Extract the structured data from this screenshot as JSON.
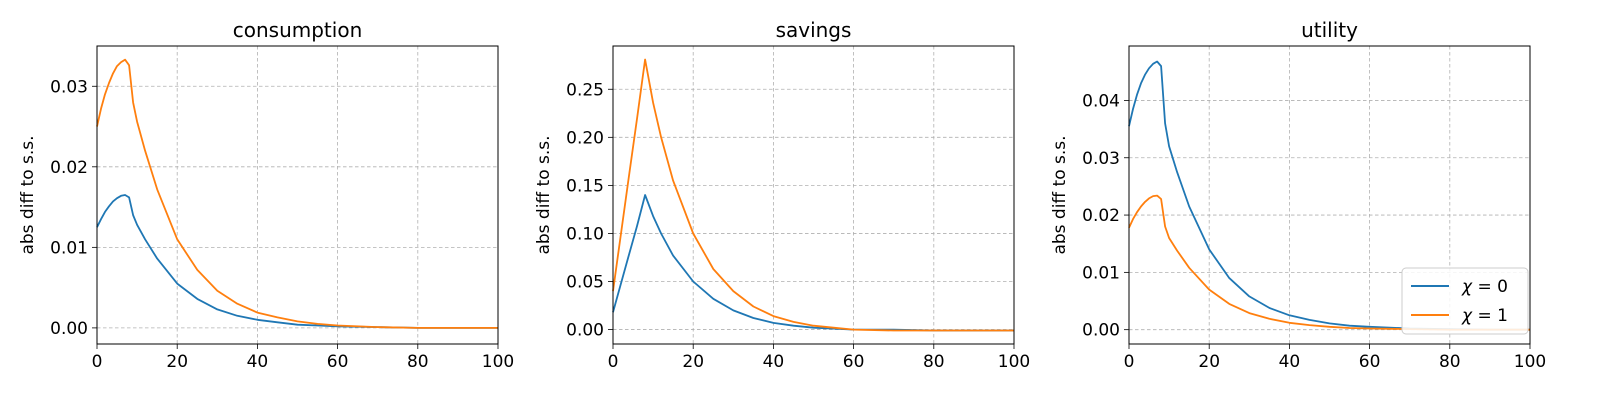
{
  "chart_data": [
    {
      "type": "line",
      "title": "consumption",
      "xlabel": "",
      "ylabel": "abs diff to s.s.",
      "xlim": [
        0,
        100
      ],
      "ylim": [
        -0.002,
        0.035
      ],
      "xticks": [
        0,
        20,
        40,
        60,
        80,
        100
      ],
      "xtick_labels": [
        "0",
        "20",
        "40",
        "60",
        "80",
        "100"
      ],
      "yticks": [
        0,
        0.01,
        0.02,
        0.03
      ],
      "ytick_labels": [
        "0.00",
        "0.01",
        "0.02",
        "0.03"
      ],
      "grid": true,
      "series": [
        {
          "name": "χ = 0",
          "color": "#1f77b4",
          "x": [
            0,
            1,
            2,
            3,
            4,
            5,
            6,
            7,
            8,
            9,
            10,
            12,
            15,
            20,
            25,
            30,
            35,
            40,
            45,
            50,
            55,
            60,
            70,
            80,
            90,
            100
          ],
          "y": [
            0.0125,
            0.0135,
            0.0144,
            0.0151,
            0.0157,
            0.0161,
            0.0164,
            0.0165,
            0.0162,
            0.014,
            0.0128,
            0.011,
            0.0086,
            0.0055,
            0.0036,
            0.0023,
            0.0015,
            0.001,
            0.0007,
            0.0004,
            0.0003,
            0.0002,
            0.0001,
            0.0,
            0.0,
            0.0
          ]
        },
        {
          "name": "χ = 1",
          "color": "#ff7f0e",
          "x": [
            0,
            1,
            2,
            3,
            4,
            5,
            6,
            7,
            8,
            9,
            10,
            12,
            15,
            20,
            25,
            30,
            35,
            40,
            45,
            50,
            55,
            60,
            70,
            80,
            90,
            100
          ],
          "y": [
            0.025,
            0.0272,
            0.029,
            0.0304,
            0.0316,
            0.0325,
            0.033,
            0.0333,
            0.0326,
            0.028,
            0.0256,
            0.022,
            0.0172,
            0.011,
            0.0072,
            0.0046,
            0.003,
            0.0019,
            0.0013,
            0.0008,
            0.0005,
            0.0003,
            0.0001,
            0.0,
            0.0,
            0.0
          ]
        }
      ]
    },
    {
      "type": "line",
      "title": "savings",
      "xlabel": "",
      "ylabel": "abs diff to s.s.",
      "xlim": [
        0,
        100
      ],
      "ylim": [
        -0.015,
        0.295
      ],
      "xticks": [
        0,
        20,
        40,
        60,
        80,
        100
      ],
      "xtick_labels": [
        "0",
        "20",
        "40",
        "60",
        "80",
        "100"
      ],
      "yticks": [
        0,
        0.05,
        0.1,
        0.15,
        0.2,
        0.25
      ],
      "ytick_labels": [
        "0.00",
        "0.05",
        "0.10",
        "0.15",
        "0.20",
        "0.25"
      ],
      "grid": true,
      "series": [
        {
          "name": "χ = 0",
          "color": "#1f77b4",
          "x": [
            0,
            2,
            4,
            6,
            8,
            10,
            12,
            15,
            20,
            25,
            30,
            35,
            40,
            45,
            50,
            55,
            60,
            70,
            80,
            90,
            100
          ],
          "y": [
            0.018,
            0.048,
            0.078,
            0.108,
            0.14,
            0.118,
            0.1,
            0.077,
            0.05,
            0.032,
            0.02,
            0.012,
            0.007,
            0.004,
            0.002,
            0.001,
            0.0,
            0.0,
            -0.001,
            -0.001,
            -0.001
          ]
        },
        {
          "name": "χ = 1",
          "color": "#ff7f0e",
          "x": [
            0,
            2,
            4,
            6,
            8,
            10,
            12,
            15,
            20,
            25,
            30,
            35,
            40,
            45,
            50,
            55,
            60,
            70,
            80,
            90,
            100
          ],
          "y": [
            0.04,
            0.1,
            0.16,
            0.22,
            0.281,
            0.236,
            0.2,
            0.155,
            0.1,
            0.063,
            0.04,
            0.024,
            0.014,
            0.008,
            0.004,
            0.002,
            0.0,
            -0.001,
            -0.001,
            -0.001,
            -0.001
          ]
        }
      ]
    },
    {
      "type": "line",
      "title": "utility",
      "xlabel": "",
      "ylabel": "abs diff to s.s.",
      "xlim": [
        0,
        100
      ],
      "ylim": [
        -0.0025,
        0.0495
      ],
      "xticks": [
        0,
        20,
        40,
        60,
        80,
        100
      ],
      "xtick_labels": [
        "0",
        "20",
        "40",
        "60",
        "80",
        "100"
      ],
      "yticks": [
        0,
        0.01,
        0.02,
        0.03,
        0.04
      ],
      "ytick_labels": [
        "0.00",
        "0.01",
        "0.02",
        "0.03",
        "0.04"
      ],
      "grid": true,
      "legend": {
        "placement": "lower-right",
        "entries": [
          {
            "sym": "χ",
            "rest": " = 0"
          },
          {
            "sym": "χ",
            "rest": " = 1"
          }
        ]
      },
      "series": [
        {
          "name": "χ = 0",
          "color": "#1f77b4",
          "x": [
            0,
            1,
            2,
            3,
            4,
            5,
            6,
            7,
            8,
            9,
            10,
            12,
            15,
            20,
            25,
            30,
            35,
            40,
            45,
            50,
            55,
            60,
            70,
            80,
            90,
            100
          ],
          "y": [
            0.0355,
            0.0385,
            0.041,
            0.043,
            0.0445,
            0.0456,
            0.0464,
            0.0468,
            0.046,
            0.036,
            0.032,
            0.0275,
            0.0215,
            0.014,
            0.009,
            0.0058,
            0.0038,
            0.0025,
            0.0017,
            0.0011,
            0.0007,
            0.0005,
            0.0002,
            0.0001,
            0.0,
            0.0
          ]
        },
        {
          "name": "χ = 1",
          "color": "#ff7f0e",
          "x": [
            0,
            1,
            2,
            3,
            4,
            5,
            6,
            7,
            8,
            9,
            10,
            12,
            15,
            20,
            25,
            30,
            35,
            40,
            45,
            50,
            55,
            60,
            70,
            80,
            90,
            100
          ],
          "y": [
            0.0178,
            0.0193,
            0.0205,
            0.0215,
            0.0223,
            0.0229,
            0.0233,
            0.0234,
            0.0228,
            0.018,
            0.016,
            0.0138,
            0.0108,
            0.007,
            0.0045,
            0.0029,
            0.0019,
            0.0012,
            0.0008,
            0.0005,
            0.0003,
            0.0002,
            0.0001,
            0.0,
            0.0,
            0.0
          ]
        }
      ]
    }
  ]
}
